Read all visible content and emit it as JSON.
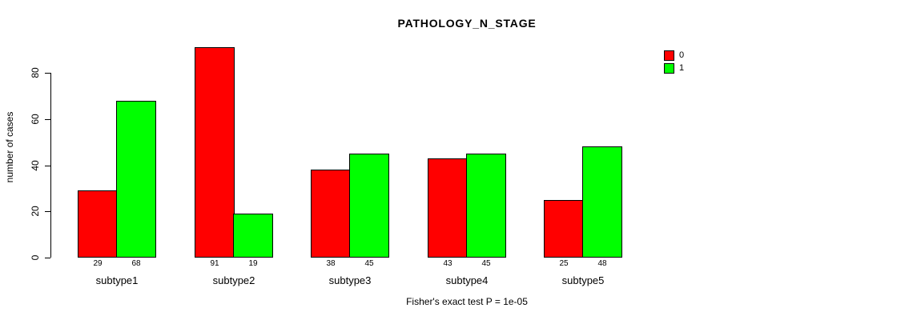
{
  "chart_data": {
    "type": "bar",
    "title": "PATHOLOGY_N_STAGE",
    "ylabel": "number of cases",
    "xlabel": "",
    "caption": "Fisher's exact test P = 1e-05",
    "categories": [
      "subtype1",
      "subtype2",
      "subtype3",
      "subtype4",
      "subtype5"
    ],
    "series": [
      {
        "name": "0",
        "color": "#ff0000",
        "values": [
          29,
          91,
          38,
          43,
          25
        ]
      },
      {
        "name": "1",
        "color": "#00ff00",
        "values": [
          68,
          19,
          45,
          45,
          48
        ]
      }
    ],
    "yticks": [
      0,
      20,
      40,
      60,
      80
    ],
    "ylim": [
      0,
      95
    ],
    "grid": false,
    "legend_position": "top-right",
    "bar_value_labels": true
  }
}
